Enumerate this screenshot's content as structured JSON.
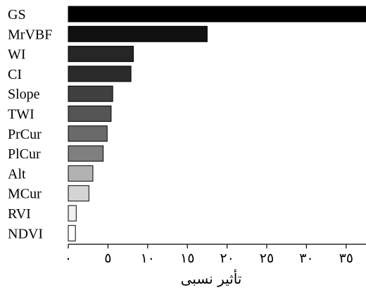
{
  "chart_data": {
    "type": "bar",
    "orientation": "horizontal",
    "categories": [
      "GS",
      "MrVBF",
      "WI",
      "CI",
      "Slope",
      "TWI",
      "PrCur",
      "PlCur",
      "Alt",
      "MCur",
      "RVI",
      "NDVI"
    ],
    "values": [
      37.5,
      17.5,
      8.2,
      7.9,
      5.6,
      5.4,
      4.9,
      4.4,
      3.1,
      2.6,
      1.0,
      0.9
    ],
    "colors": [
      "#000000",
      "#111111",
      "#262626",
      "#2b2b2b",
      "#404040",
      "#555555",
      "#6a6a6a",
      "#7f7f7f",
      "#b2b2b2",
      "#d4d4d4",
      "#f0f0f0",
      "#ffffff"
    ],
    "xticks": [
      0,
      5,
      10,
      15,
      20,
      25,
      30,
      35
    ],
    "xtick_labels": [
      "٠",
      "٥",
      "١٠",
      "١٥",
      "٢٠",
      "٢٥",
      "٣٠",
      "٣٥"
    ],
    "xlim": [
      0,
      37.5
    ],
    "xlabel": "تأثیر نسبی",
    "ylabel": "",
    "title": "",
    "grid": false,
    "legend": "none"
  }
}
